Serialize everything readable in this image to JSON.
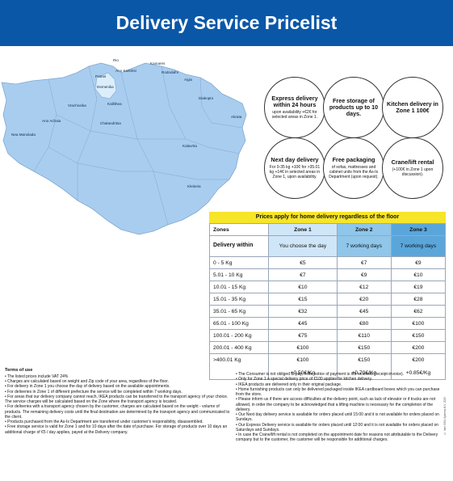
{
  "header": {
    "title": "Delivery Service Pricelist"
  },
  "map": {
    "places": [
      "Rio",
      "Kamares",
      "Ano Kastritsi",
      "Patras",
      "Rododafni",
      "Aigio",
      "Demenika",
      "Vrachneika",
      "Kallithea",
      "Diakopto",
      "Ano Achaia",
      "Chalandritsa",
      "Akrata",
      "Nea Manolada",
      "Kalavrita",
      "Kleitoria"
    ],
    "colors": {
      "land": "#a9cdef",
      "zone1": "#dbeefa",
      "sea": "#ffffff",
      "outline": "#7fa8cf"
    }
  },
  "circles": [
    {
      "title": "Express delivery within 24 hours",
      "sub": "upon availability +€2€ for selected areas in Zone 1."
    },
    {
      "title": "Free storage of products up to 10 days.",
      "sub": ""
    },
    {
      "title": "Kitchen delivery in Zone 1 100€",
      "sub": ""
    },
    {
      "title": "Next day delivery",
      "sub": "For 0-35 kg +10€ for >35.01 kg +14€ in selected areas in Zone 1, upon availability."
    },
    {
      "title": "Free packaging",
      "sub": "of sofas, mattresses and cabinet units from the As-Is Department (upon request)."
    },
    {
      "title": "Crane/lift rental",
      "sub": "(+100€ in Zone 1 upon discussion)."
    }
  ],
  "table": {
    "title": "Prices apply for home delivery regardless of the floor",
    "header": [
      "Zones",
      "Zone 1",
      "Zone 2",
      "Zone 3"
    ],
    "delivery_label": "Delivery within",
    "delivery": [
      "You choose the day",
      "7 working days",
      "7 working days"
    ],
    "rows": [
      [
        "0 - 5 Kg",
        "€5",
        "€7",
        "€9"
      ],
      [
        "5.01 - 10 Kg",
        "€7",
        "€9",
        "€10"
      ],
      [
        "10.01 - 15 Kg",
        "€10",
        "€12",
        "€19"
      ],
      [
        "15.01 - 35 Kg",
        "€15",
        "€20",
        "€28"
      ],
      [
        "35.01 - 65 Kg",
        "€32",
        "€45",
        "€62"
      ],
      [
        "65.01 - 100 Kg",
        "€45",
        "€80",
        "€100"
      ],
      [
        "100.01 - 200 Kg",
        "€75",
        "€110",
        "€150"
      ],
      [
        "200.01 - 400 Kg",
        "€100",
        "€150",
        "€200"
      ],
      [
        "400.01 Kg",
        "€100",
        "€150",
        "€200"
      ]
    ],
    "last_row_label": ">400.01 Kg",
    "extra": [
      "+0.50€/Kg",
      "+0.70€/Kg",
      "+0.85€/Kg"
    ]
  },
  "terms": {
    "title": "Terms of use",
    "left": [
      "• The listed prices include VAT 24%",
      "• Charges are calculated based on weight and Zip code of your area, regardless of the floor.",
      "• For delivery in Zone 1 you choose the day of delivery based on the available appointments.",
      "• For deliveries in Zone 1 of different prefecture the service will be completed within 7 working days.",
      "• For areas that our delivery company cannot reach, IKEA products can be transferred to the transport agency of your choice. The service charges will be calculated based on the Zone where the transport agency is located.",
      "• For deliveries with a transport agency chosen by the customer, charges are calculated based on the weight - volume of products. The remaining delivery costs until the final destination are determined by the transport agency and communicated to the client.",
      "• Products purchased from the As-Is Department are transferred under customer's responsibility, disassembled.",
      "• Free storage service is valid for Zone 1 and for 10 days after the date of purchase. For storage of products over 10 days an additional charge of €5 / day applies, payed at the Delivery company."
    ],
    "right": [
      "• The Consumer is not obliged to pay, if the notice of payment is not received (receipt-invoice).",
      "• Only for Zone 1 a special delivery price of €100 applies for kitchen delivery.",
      "• IKEA products are delivered only in their original package.",
      "• Home furnishing products can only be delivered packaged inside IKEA cardboard boxes which you can purchase from the store.",
      "• Please inform us if there are access difficulties at the delivery point, such as lack of elevator or if trucks are not allowed, in order the company to be acknowledged that a lifting machine is necessary for the completion of the delivery.",
      "• Our Next day delivery service is available for orders placed until 15:00 and it is not available for orders placed on Sundays.",
      "• Our Express Delivery service is available for orders placed until 12:00 and it is not available for orders placed on Saturdays and Sundays.",
      "• In case the Crane/lift rental is not completed on the appointment date for reasons not attributable to the Delivery company but to the customer, the customer will be responsible for additional charges."
    ],
    "vertical_note": "© Inter IKEA Systems B.V. 2025"
  }
}
